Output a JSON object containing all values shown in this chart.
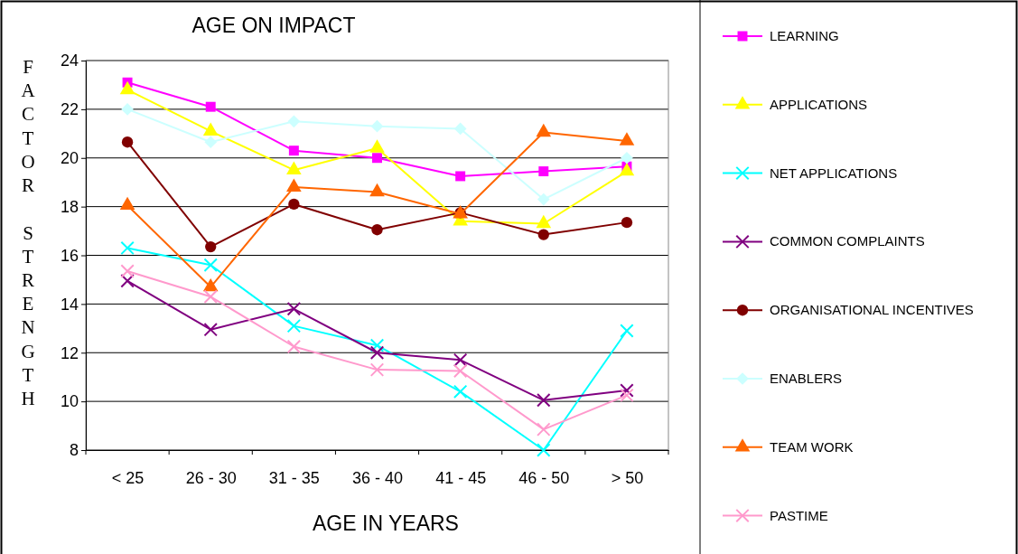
{
  "chart_data": {
    "type": "line",
    "title": "AGE ON IMPACT",
    "xlabel": "AGE IN YEARS",
    "ylabel": "FACTOR STRENGTH",
    "categories": [
      "< 25",
      "26 - 30",
      "31 - 35",
      "36 - 40",
      "41 - 45",
      "46 - 50",
      "> 50"
    ],
    "ylim": [
      8,
      24
    ],
    "yticks": [
      8,
      10,
      12,
      14,
      16,
      18,
      20,
      22,
      24
    ],
    "grid": "y",
    "legend": "right",
    "series": [
      {
        "name": "LEARNING",
        "color": "#ff00ff",
        "marker": "square",
        "values": [
          23.1,
          22.1,
          20.3,
          20.0,
          19.25,
          19.45,
          19.65
        ]
      },
      {
        "name": "APPLICATIONS",
        "color": "#ffff00",
        "marker": "triangle",
        "values": [
          22.8,
          21.1,
          19.5,
          20.4,
          17.4,
          17.3,
          19.45
        ]
      },
      {
        "name": "NET APPLICATIONS",
        "color": "#00ffff",
        "marker": "cross",
        "values": [
          16.3,
          15.6,
          13.1,
          12.3,
          10.4,
          8.0,
          12.9
        ]
      },
      {
        "name": "COMMON COMPLAINTS",
        "color": "#800080",
        "marker": "cross",
        "values": [
          14.95,
          12.95,
          13.8,
          12.0,
          11.7,
          10.05,
          10.45
        ]
      },
      {
        "name": "ORGANISATIONAL INCENTIVES",
        "color": "#800000",
        "marker": "circle",
        "values": [
          20.65,
          16.35,
          18.1,
          17.05,
          17.75,
          16.85,
          17.35
        ]
      },
      {
        "name": "ENABLERS",
        "color": "#ccffff",
        "marker": "diamond",
        "values": [
          22.0,
          20.65,
          21.5,
          21.3,
          21.2,
          18.3,
          20.0
        ]
      },
      {
        "name": "TEAM WORK",
        "color": "#ff6600",
        "marker": "triangle",
        "values": [
          18.05,
          14.7,
          18.8,
          18.6,
          17.7,
          21.05,
          20.7
        ]
      },
      {
        "name": "PASTIME",
        "color": "#ff99cc",
        "marker": "cross",
        "values": [
          15.35,
          14.3,
          12.25,
          11.3,
          11.25,
          8.85,
          10.25
        ]
      }
    ]
  }
}
